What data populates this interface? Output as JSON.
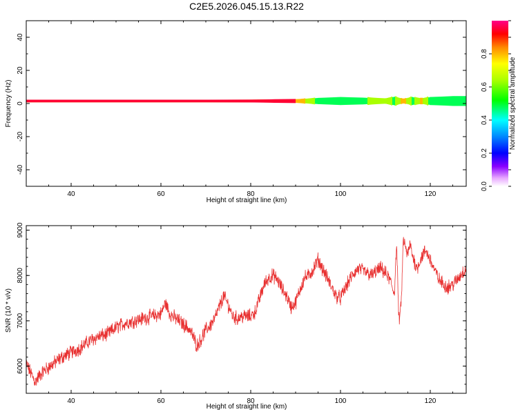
{
  "title": "C2E5.2026.045.15.13.R22",
  "spectrogram": {
    "xlabel": "Height of straight line (km)",
    "ylabel": "Frequency (Hz)",
    "xlim": [
      30,
      128
    ],
    "ylim": [
      -50,
      50
    ],
    "xticks": [
      40,
      60,
      80,
      100,
      120
    ],
    "yticks": [
      -40,
      -20,
      0,
      20,
      40
    ],
    "colorbar": {
      "label": "Normalized spectral amplitude",
      "range": [
        0,
        1
      ],
      "ticks": [
        0.0,
        0.2,
        0.4,
        0.6,
        0.8
      ]
    }
  },
  "chart_data": [
    {
      "type": "heatmap",
      "title": "C2E5.2026.045.15.13.R22",
      "xlabel": "Height of straight line (km)",
      "ylabel": "Frequency (Hz)",
      "xlim": [
        30,
        128
      ],
      "ylim": [
        -50,
        50
      ],
      "colorbar_label": "Normalized spectral amplitude",
      "ridge": {
        "center_hz": 1.5,
        "x": [
          30,
          40,
          50,
          60,
          70,
          80,
          85,
          90,
          95,
          100,
          105,
          110,
          112,
          114,
          116,
          118,
          120,
          125,
          128
        ],
        "peak_amplitude": [
          1.0,
          1.0,
          1.0,
          1.0,
          1.0,
          1.0,
          0.95,
          0.95,
          0.6,
          0.55,
          0.6,
          0.8,
          0.6,
          0.9,
          0.6,
          0.85,
          0.55,
          0.5,
          0.5
        ],
        "halfwidth_hz": [
          1.2,
          1.2,
          1.2,
          1.2,
          1.2,
          1.3,
          1.4,
          1.6,
          2.2,
          2.6,
          2.4,
          2.2,
          3.0,
          2.0,
          2.8,
          2.4,
          2.6,
          2.8,
          2.8
        ]
      }
    },
    {
      "type": "line",
      "xlabel": "Height of straight line (km)",
      "ylabel": "SNR (10 * v/v)",
      "xlim": [
        30,
        128
      ],
      "ylim": [
        5400,
        9100
      ],
      "xticks": [
        40,
        60,
        80,
        100,
        120
      ],
      "yticks": [
        6000,
        7000,
        8000,
        9000
      ],
      "color": "#e83030",
      "series": [
        {
          "x": [
            30,
            31,
            32,
            33,
            34,
            36,
            38,
            40,
            42,
            44,
            46,
            48,
            50,
            52,
            54,
            56,
            58,
            60,
            61,
            62,
            64,
            66,
            67,
            68,
            69,
            70,
            71,
            72,
            73,
            74,
            75,
            76,
            77,
            78,
            80,
            81,
            82,
            83,
            84,
            85,
            86,
            87,
            88,
            89,
            90,
            91,
            92,
            93,
            94,
            95,
            96,
            97,
            98,
            99,
            100,
            101,
            102,
            103,
            104,
            105,
            106,
            107,
            108,
            109,
            110,
            111,
            112,
            112.5,
            113,
            113.5,
            114,
            114.5,
            115,
            115.5,
            116,
            117,
            118,
            119,
            120,
            121,
            122,
            123,
            124,
            125,
            126,
            127,
            128
          ],
          "values": [
            6050,
            5850,
            5650,
            5800,
            5900,
            6050,
            6200,
            6300,
            6400,
            6550,
            6650,
            6700,
            6850,
            6950,
            7000,
            7050,
            7100,
            7150,
            7400,
            7150,
            7000,
            6850,
            6700,
            6450,
            6600,
            6800,
            6900,
            7050,
            7300,
            7550,
            7350,
            7100,
            7050,
            7100,
            7100,
            7200,
            7500,
            7800,
            7950,
            8000,
            7900,
            7700,
            7550,
            7300,
            7400,
            7700,
            7950,
            8000,
            8150,
            8350,
            8150,
            7950,
            7750,
            7550,
            7500,
            7700,
            7900,
            8050,
            8150,
            8100,
            8050,
            8000,
            8100,
            8150,
            8050,
            7900,
            7600,
            8700,
            7000,
            7300,
            8800,
            8600,
            8450,
            8700,
            8450,
            8150,
            8400,
            8550,
            8350,
            8100,
            7900,
            7800,
            7750,
            7800,
            7900,
            8050,
            8150
          ]
        }
      ]
    }
  ]
}
